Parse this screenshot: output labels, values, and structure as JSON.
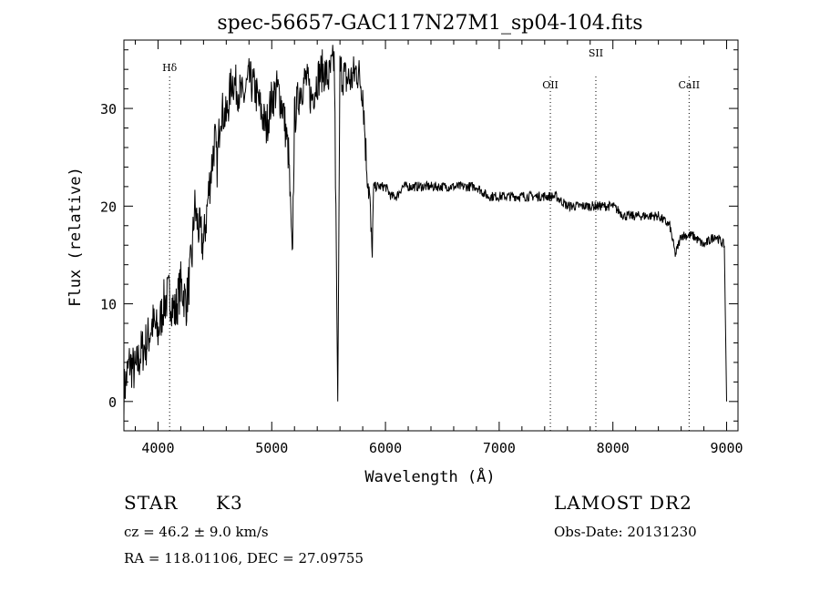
{
  "chart_data": {
    "type": "line",
    "title": "spec-56657-GAC117N27M1_sp04-104.fits",
    "xlabel": "Wavelength (Å)",
    "ylabel": "Flux (relative)",
    "xlim": [
      3700,
      9100
    ],
    "ylim": [
      -3,
      37
    ],
    "xticks": [
      4000,
      5000,
      6000,
      7000,
      8000,
      9000
    ],
    "yticks": [
      0,
      10,
      20,
      30
    ],
    "grid": false,
    "series": [
      {
        "x": [
          3700,
          3750,
          3800,
          3850,
          3900,
          3950,
          4000,
          4050,
          4100,
          4150,
          4200,
          4250,
          4300,
          4320,
          4350,
          4400,
          4450,
          4500,
          4520,
          4550,
          4600,
          4650,
          4700,
          4750,
          4800,
          4850,
          4900,
          4950,
          5000,
          5050,
          5100,
          5150,
          5180,
          5200,
          5250,
          5300,
          5350,
          5400,
          5450,
          5500,
          5550,
          5580,
          5600,
          5650,
          5700,
          5750,
          5800,
          5830,
          5860,
          5880,
          5900,
          5950,
          6000,
          6050,
          6100,
          6150,
          6200,
          6300,
          6400,
          6500,
          6600,
          6700,
          6800,
          6900,
          7000,
          7100,
          7200,
          7300,
          7400,
          7500,
          7600,
          7700,
          7800,
          7900,
          8000,
          8100,
          8200,
          8300,
          8400,
          8500,
          8550,
          8600,
          8700,
          8800,
          8900,
          8980,
          9000
        ],
        "y": [
          1,
          4,
          3,
          5,
          6,
          8,
          7,
          10,
          11,
          9,
          12,
          10,
          15,
          20,
          18,
          16,
          22,
          27,
          24,
          30,
          29,
          33,
          32,
          31,
          33,
          32,
          30,
          28,
          31,
          32,
          30,
          25,
          14,
          29,
          32,
          33,
          31,
          33,
          34,
          33,
          35,
          0,
          34,
          33,
          33,
          34,
          32,
          25,
          21,
          15,
          22,
          22,
          22,
          21,
          21,
          22,
          22,
          22,
          22,
          22,
          22,
          22,
          22,
          21,
          21,
          21,
          21,
          21,
          21,
          21,
          20,
          20,
          20,
          20,
          20,
          19,
          19,
          19,
          19,
          18,
          15,
          17,
          17,
          16,
          17,
          16,
          0
        ]
      }
    ],
    "lines": [
      {
        "label": "Hδ",
        "x": 4102
      },
      {
        "label": "OII",
        "x": 7450
      },
      {
        "label": "SII",
        "x": 7850
      },
      {
        "label": "CaII",
        "x": 8670
      }
    ]
  },
  "info": {
    "object_class": "STAR",
    "subclass": "K3",
    "survey": "LAMOST DR2",
    "redshift": "cz = 46.2 ± 9.0 km/s",
    "obs_date": "Obs-Date: 20131230",
    "coords": "RA = 118.01106, DEC =  27.09755"
  }
}
